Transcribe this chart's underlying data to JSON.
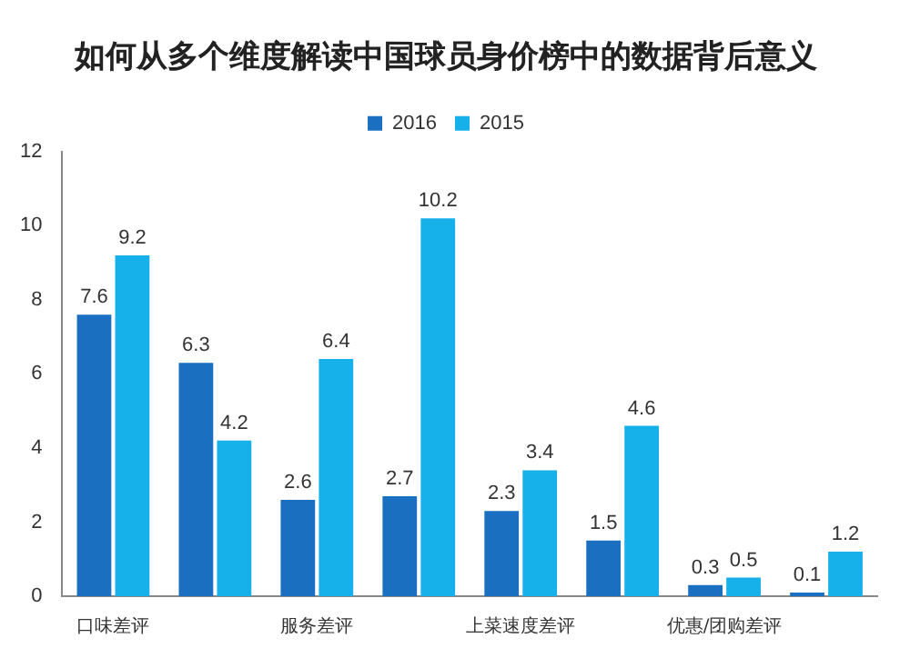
{
  "chart_data": {
    "type": "bar",
    "title": "如何从多个维度解读中国球员身价榜中的数据背后意义",
    "categories": [
      "口味差评",
      null,
      "服务差评",
      null,
      "上菜速度差评",
      null,
      "优惠/团购差评",
      null
    ],
    "series": [
      {
        "name": "2016",
        "color": "#1a6fc0",
        "values": [
          7.6,
          6.3,
          2.6,
          2.7,
          2.3,
          1.5,
          0.3,
          0.1
        ]
      },
      {
        "name": "2015",
        "color": "#16b0ea",
        "values": [
          9.2,
          4.2,
          6.4,
          10.2,
          3.4,
          4.6,
          0.5,
          1.2
        ]
      }
    ],
    "ylim": [
      0,
      12
    ],
    "yticks": [
      0,
      2,
      4,
      6,
      8,
      10,
      12
    ],
    "grid": false,
    "legend": "top",
    "data_labels": true
  }
}
